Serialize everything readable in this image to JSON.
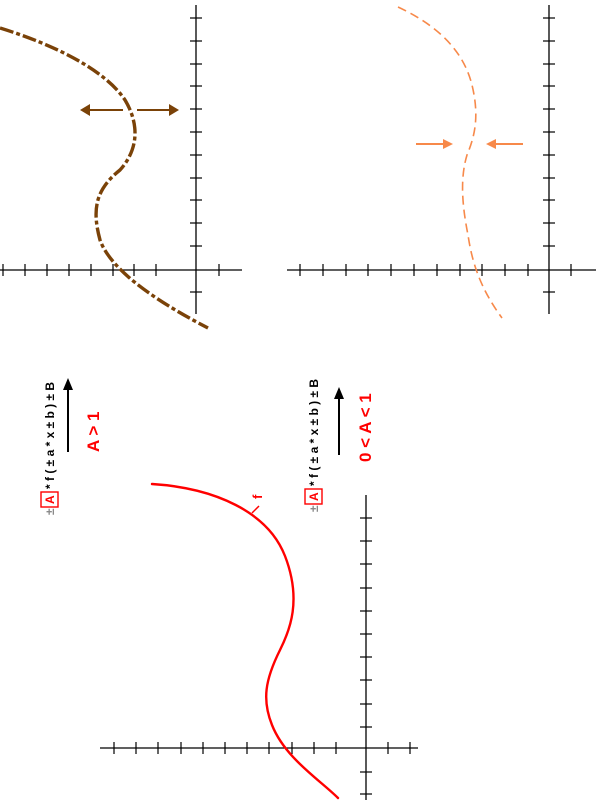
{
  "colors": {
    "original": "#ff0000",
    "stretch": "#7a4208",
    "compress": "#f7894a",
    "axes": "#000000",
    "formula_muted": "#8a8a8a",
    "highlight_box": "#ff0000"
  },
  "curve_label": "f",
  "formula": {
    "sign": "±",
    "A": "A",
    "rest": "* f ( ± a * x ± b ) ± B"
  },
  "conditions": {
    "stretch": "A > 1",
    "compress": "0 < A < 1"
  },
  "icons": {
    "direction_arrow": "arrow-right-icon",
    "stretch_arrows": "double-outward-arrows-icon",
    "compress_arrows": "double-inward-arrows-icon"
  }
}
